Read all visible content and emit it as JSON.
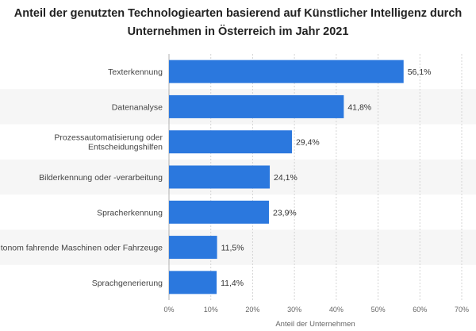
{
  "chart_data": {
    "type": "bar",
    "orientation": "horizontal",
    "title_lines": [
      "Anteil der genutzten Technologiearten basierend auf Künstlicher Intelligenz durch",
      "Unternehmen in Österreich im Jahr 2021"
    ],
    "categories": [
      [
        "Texterkennung"
      ],
      [
        "Datenanalyse"
      ],
      [
        "Prozessautomatisierung oder",
        "Entscheidungshilfen"
      ],
      [
        "Bilderkennung oder -verarbeitung"
      ],
      [
        "Spracherkennung"
      ],
      [
        "Autonom fahrende Maschinen oder Fahrzeuge"
      ],
      [
        "Sprachgenerierung"
      ]
    ],
    "values": [
      56.1,
      41.8,
      29.4,
      24.1,
      23.9,
      11.5,
      11.4
    ],
    "value_labels": [
      "56,1%",
      "41,8%",
      "29,4%",
      "24,1%",
      "23,9%",
      "11,5%",
      "11,4%"
    ],
    "xlim": [
      0,
      70
    ],
    "x_ticks": [
      0,
      10,
      20,
      30,
      40,
      50,
      60,
      70
    ],
    "x_tick_labels": [
      "0%",
      "10%",
      "20%",
      "30%",
      "40%",
      "50%",
      "60%",
      "70%"
    ],
    "xlabel": "Anteil der Unternehmen",
    "ylabel": "",
    "grid": true,
    "legend": "none",
    "bar_color": "#2b78de",
    "band_color": "#f6f6f6"
  }
}
